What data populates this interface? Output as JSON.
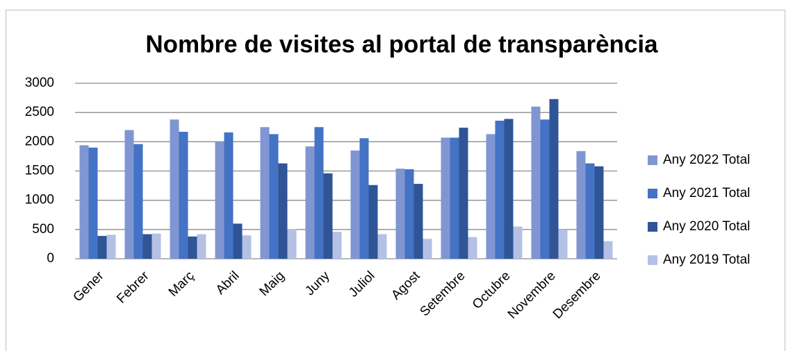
{
  "chart_data": {
    "type": "bar",
    "title": "Nombre de visites al portal de transparència",
    "categories": [
      "Gener",
      "Febrer",
      "Març",
      "Abril",
      "Maig",
      "Juny",
      "Juliol",
      "Agost",
      "Setembre",
      "Octubre",
      "Novembre",
      "Desembre"
    ],
    "series": [
      {
        "name": "Any 2022 Total",
        "color": "#7f96d3",
        "values": [
          1940,
          2200,
          2380,
          2000,
          2250,
          1920,
          1850,
          1540,
          2070,
          2130,
          2600,
          1840
        ]
      },
      {
        "name": "Any 2021 Total",
        "color": "#4472c4",
        "values": [
          1900,
          1960,
          2170,
          2160,
          2130,
          2250,
          2060,
          1530,
          2070,
          2360,
          2380,
          1630
        ]
      },
      {
        "name": "Any 2020 Total",
        "color": "#2f5597",
        "values": [
          390,
          420,
          380,
          600,
          1630,
          1460,
          1260,
          1280,
          2240,
          2390,
          2730,
          1580
        ]
      },
      {
        "name": "Any 2019 Total",
        "color": "#b4c1e5",
        "values": [
          410,
          430,
          420,
          400,
          510,
          460,
          420,
          340,
          370,
          550,
          500,
          300
        ]
      }
    ],
    "ylim": [
      0,
      3000
    ],
    "yticks": [
      0,
      500,
      1000,
      1500,
      2000,
      2500,
      3000
    ],
    "grid": true,
    "legend": "right"
  }
}
